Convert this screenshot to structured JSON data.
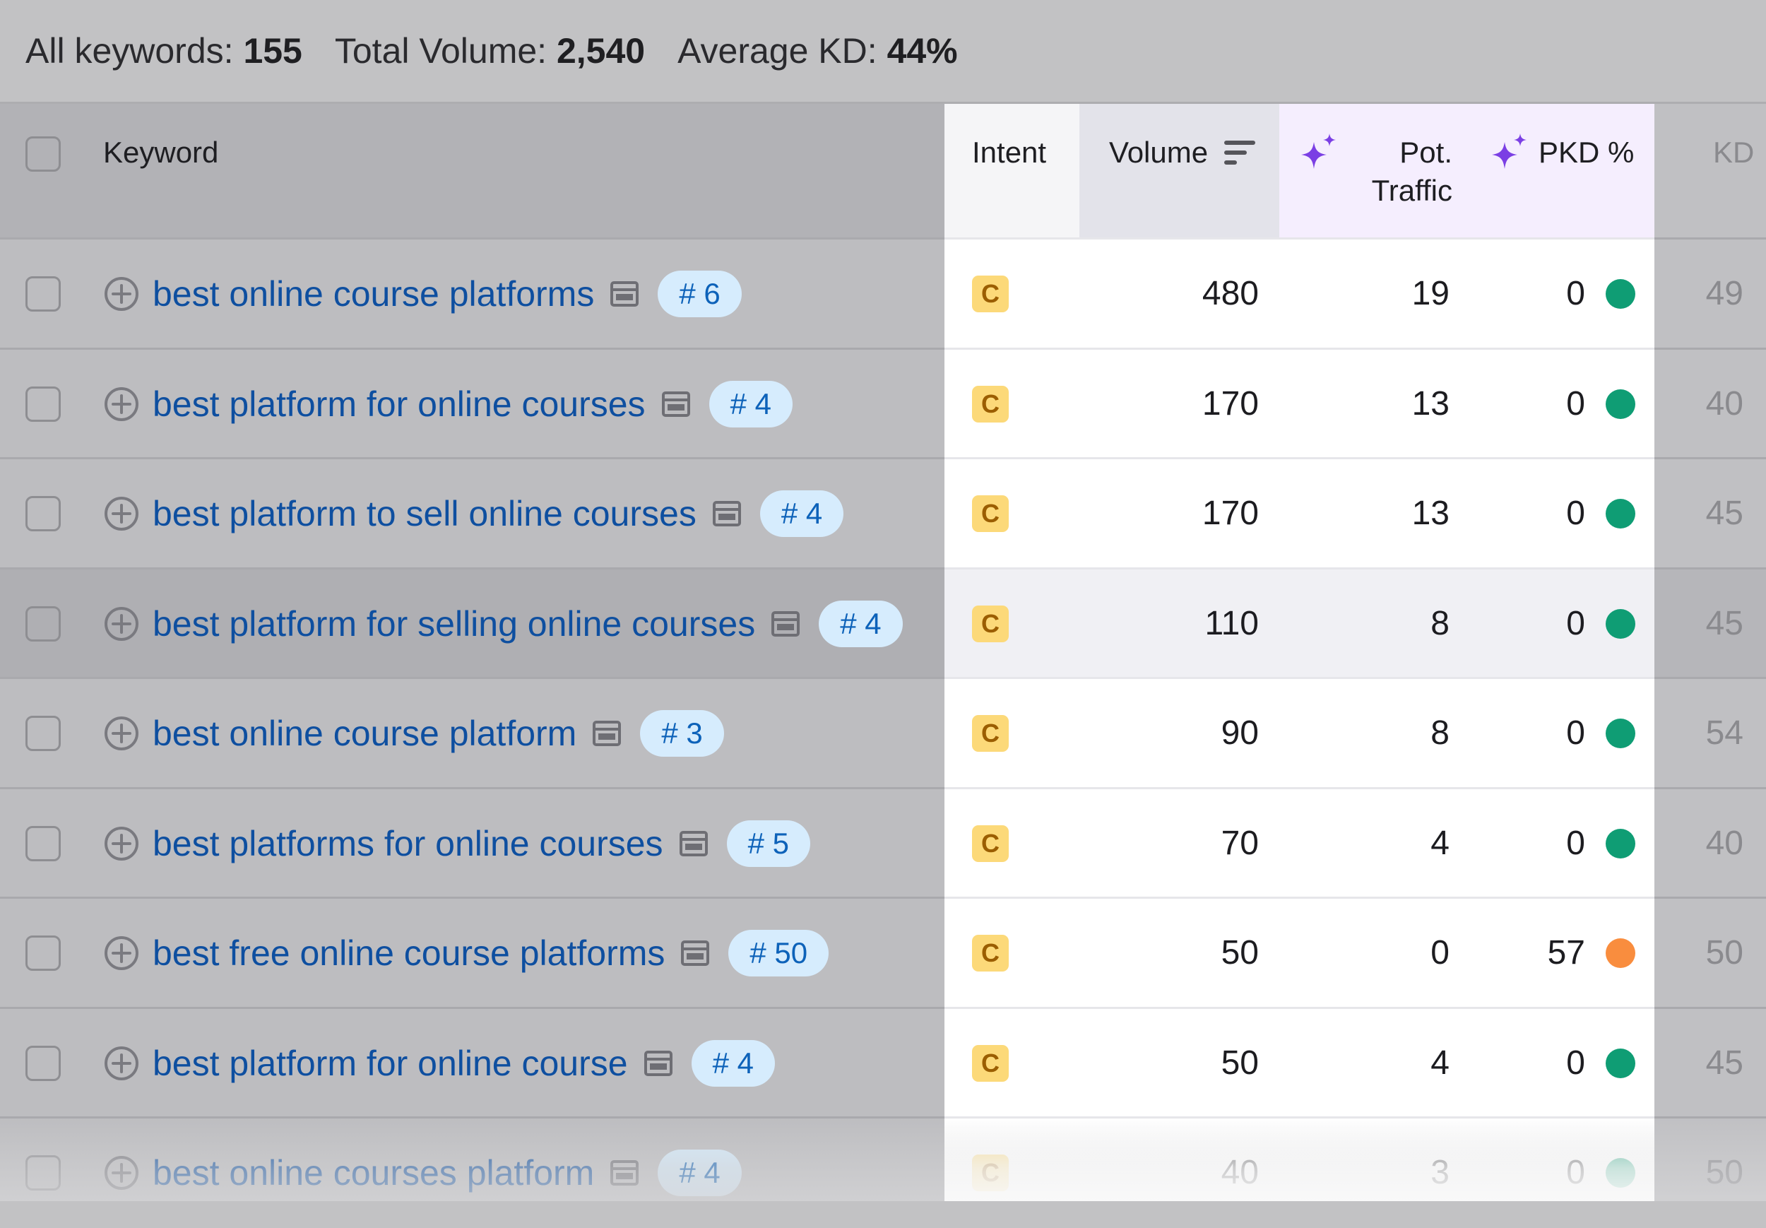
{
  "summary": {
    "all_keywords_label": "All keywords:",
    "all_keywords_value": "155",
    "total_volume_label": "Total Volume:",
    "total_volume_value": "2,540",
    "average_kd_label": "Average KD:",
    "average_kd_value": "44%"
  },
  "columns": {
    "keyword": "Keyword",
    "intent": "Intent",
    "volume": "Volume",
    "pot_traffic_line1": "Pot.",
    "pot_traffic_line2": "Traffic",
    "pkd": "PKD %",
    "kd": "KD"
  },
  "icons": {
    "sort": "sort-descending-icon",
    "ai": "sparkle-icon",
    "add": "add-circle-icon",
    "serp": "serp-features-icon"
  },
  "colors": {
    "link": "#0e4fa0",
    "badge_bg": "#d6ecfd",
    "intent_bg": "#fcd979",
    "dot_green": "#0f9d74",
    "dot_orange": "#f98d3e",
    "ai_purple": "#7b3fe4"
  },
  "rows": [
    {
      "keyword": "best online course platforms",
      "position": "# 6",
      "intent": "C",
      "volume": "480",
      "pot_traffic": "19",
      "pkd": "0",
      "pkd_level": "green",
      "kd": "49"
    },
    {
      "keyword": "best platform for online courses",
      "position": "# 4",
      "intent": "C",
      "volume": "170",
      "pot_traffic": "13",
      "pkd": "0",
      "pkd_level": "green",
      "kd": "40"
    },
    {
      "keyword": "best platform to sell online courses",
      "position": "# 4",
      "intent": "C",
      "volume": "170",
      "pot_traffic": "13",
      "pkd": "0",
      "pkd_level": "green",
      "kd": "45"
    },
    {
      "keyword": "best platform for selling online courses",
      "position": "# 4",
      "intent": "C",
      "volume": "110",
      "pot_traffic": "8",
      "pkd": "0",
      "pkd_level": "green",
      "kd": "45"
    },
    {
      "keyword": "best online course platform",
      "position": "# 3",
      "intent": "C",
      "volume": "90",
      "pot_traffic": "8",
      "pkd": "0",
      "pkd_level": "green",
      "kd": "54"
    },
    {
      "keyword": "best platforms for online courses",
      "position": "# 5",
      "intent": "C",
      "volume": "70",
      "pot_traffic": "4",
      "pkd": "0",
      "pkd_level": "green",
      "kd": "40"
    },
    {
      "keyword": "best free online course platforms",
      "position": "# 50",
      "intent": "C",
      "volume": "50",
      "pot_traffic": "0",
      "pkd": "57",
      "pkd_level": "orange",
      "kd": "50"
    },
    {
      "keyword": "best platform for online course",
      "position": "# 4",
      "intent": "C",
      "volume": "50",
      "pot_traffic": "4",
      "pkd": "0",
      "pkd_level": "green",
      "kd": "45"
    },
    {
      "keyword": "best online courses platform",
      "position": "# 4",
      "intent": "C",
      "volume": "40",
      "pot_traffic": "3",
      "pkd": "0",
      "pkd_level": "green",
      "kd": "50"
    }
  ]
}
